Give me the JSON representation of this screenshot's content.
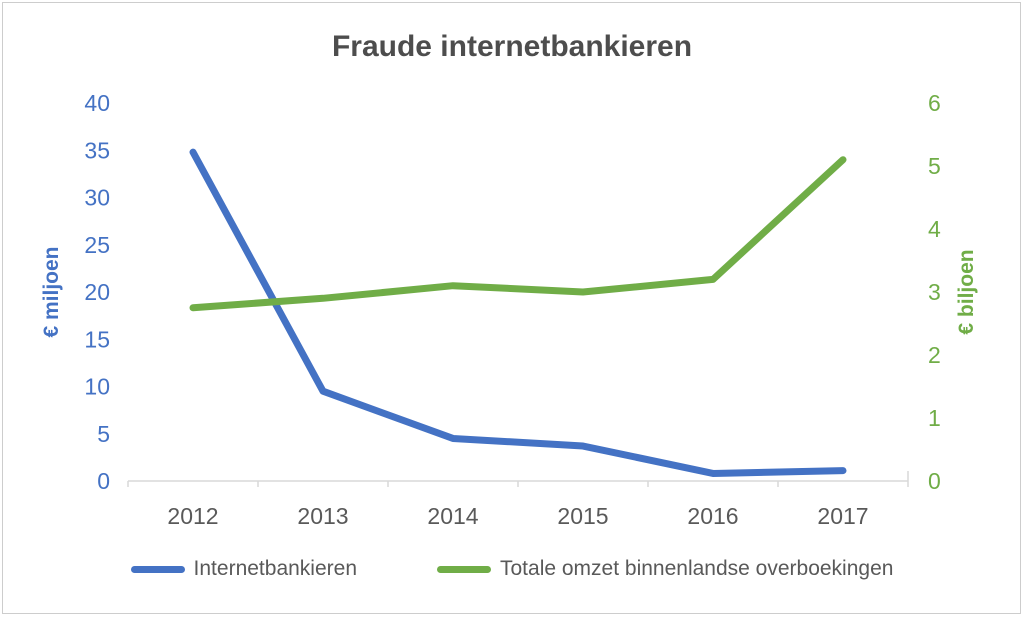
{
  "chart_data": {
    "type": "line",
    "title": "Fraude internetbankieren",
    "categories": [
      "2012",
      "2013",
      "2014",
      "2015",
      "2016",
      "2017"
    ],
    "series": [
      {
        "name": "Internetbankieren",
        "axis": "left",
        "color": "#4472C4",
        "values": [
          34.8,
          9.5,
          4.5,
          3.7,
          0.8,
          1.1
        ]
      },
      {
        "name": "Totale omzet binnenlandse overboekingen",
        "axis": "right",
        "color": "#70AD47",
        "values": [
          2.75,
          2.9,
          3.1,
          3.0,
          3.2,
          5.1
        ]
      }
    ],
    "left_axis": {
      "label": "€ miljoen",
      "color": "#4472C4",
      "range": [
        0,
        40
      ],
      "ticks": [
        0,
        5,
        10,
        15,
        20,
        25,
        30,
        35,
        40
      ]
    },
    "right_axis": {
      "label": "€ biljoen",
      "color": "#70AD47",
      "range": [
        0,
        6
      ],
      "ticks": [
        0,
        1,
        2,
        3,
        4,
        5,
        6
      ]
    },
    "x_axis": {
      "color": "#D9D9D9",
      "tick_label_color": "#595959"
    },
    "legend_position": "bottom",
    "grid": false
  }
}
